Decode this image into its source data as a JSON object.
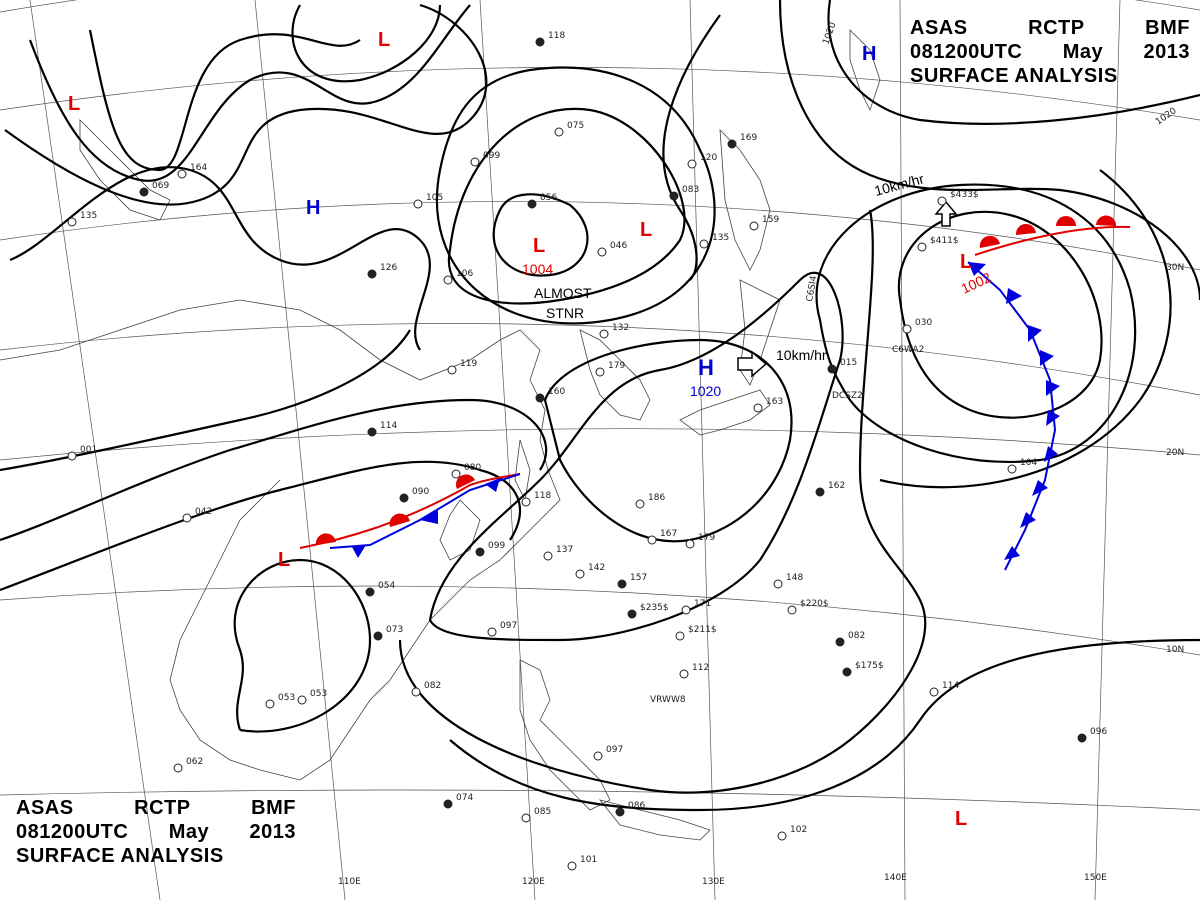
{
  "header": {
    "line1": [
      "ASAS",
      "RCTP",
      "BMF"
    ],
    "line2": [
      "081200UTC",
      "May",
      "2013"
    ],
    "line3": "SURFACE ANALYSIS"
  },
  "longitude_labels": [
    "110E",
    "120E",
    "130E",
    "140E",
    "150E"
  ],
  "latitude_labels": [
    "30N",
    "20N",
    "10N"
  ],
  "isobar_labels": [
    "1020",
    "1020"
  ],
  "pressure_systems": [
    {
      "kind": "L",
      "value": "1004",
      "color": "#e00000"
    },
    {
      "kind": "H",
      "value": "1020",
      "color": "#0000cc"
    },
    {
      "kind": "L",
      "value": "1002",
      "color": "#e00000"
    },
    {
      "kind": "H",
      "value": "",
      "color": "#0000cc"
    },
    {
      "kind": "L",
      "value": "",
      "color": "#e00000"
    }
  ],
  "annotations": {
    "almost": "ALMOST",
    "stnr": "STNR",
    "motion1": "10km/hr",
    "motion2": "10km/hr"
  },
  "station_codes": [
    "C6SI4",
    "DCSZ2",
    "C6WA2",
    "VRWW8"
  ],
  "station_values": [
    "118",
    "075",
    "099",
    "056",
    "046",
    "120",
    "083",
    "159",
    "135",
    "169",
    "164",
    "105",
    "126",
    "106",
    "119",
    "114",
    "132",
    "179",
    "160",
    "186",
    "179",
    "162",
    "137",
    "142",
    "157",
    "171",
    "148",
    "082",
    "112",
    "114",
    "096",
    "102",
    "101",
    "086",
    "097",
    "085",
    "074",
    "062",
    "053",
    "073",
    "082",
    "097",
    "099",
    "118",
    "080",
    "090",
    "042",
    "001",
    "069",
    "135",
    "030",
    "015",
    "104",
    "163",
    "054",
    "053",
    "167",
    "$235$",
    "$211$",
    "$220$",
    "$175$",
    "$411$",
    "$433$"
  ],
  "colors": {
    "warm_front": "#e00000",
    "cold_front": "#0000dd",
    "isobar": "#000000"
  }
}
